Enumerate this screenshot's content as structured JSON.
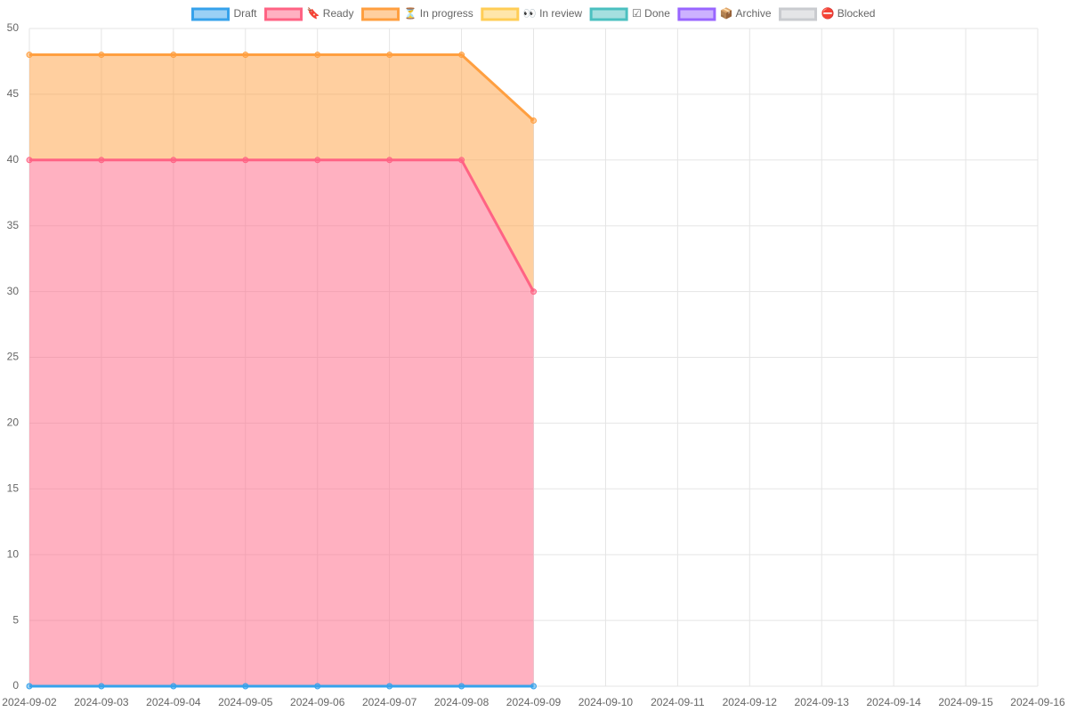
{
  "chart_data": {
    "type": "stacked-area",
    "categories": [
      "2024-09-02",
      "2024-09-03",
      "2024-09-04",
      "2024-09-05",
      "2024-09-06",
      "2024-09-07",
      "2024-09-08",
      "2024-09-09",
      "2024-09-10",
      "2024-09-11",
      "2024-09-12",
      "2024-09-13",
      "2024-09-14",
      "2024-09-15",
      "2024-09-16"
    ],
    "series": [
      {
        "name": "Draft",
        "color": "#36a2eb",
        "values": [
          0,
          0,
          0,
          0,
          0,
          0,
          0,
          0,
          null,
          null,
          null,
          null,
          null,
          null,
          null
        ]
      },
      {
        "name": "🔖 Ready",
        "color": "#ff6384",
        "values": [
          40,
          40,
          40,
          40,
          40,
          40,
          40,
          30,
          null,
          null,
          null,
          null,
          null,
          null,
          null
        ]
      },
      {
        "name": "⏳ In progress",
        "color": "#ff9f40",
        "values": [
          8,
          8,
          8,
          8,
          8,
          8,
          8,
          13,
          null,
          null,
          null,
          null,
          null,
          null,
          null
        ]
      },
      {
        "name": "👀 In review",
        "color": "#ffcd56",
        "values": [
          null,
          null,
          null,
          null,
          null,
          null,
          null,
          null,
          null,
          null,
          null,
          null,
          null,
          null,
          null
        ]
      },
      {
        "name": "☑ Done",
        "color": "#4bc0c0",
        "values": [
          null,
          null,
          null,
          null,
          null,
          null,
          null,
          null,
          null,
          null,
          null,
          null,
          null,
          null,
          null
        ]
      },
      {
        "name": "📦 Archive",
        "color": "#9966ff",
        "values": [
          null,
          null,
          null,
          null,
          null,
          null,
          null,
          null,
          null,
          null,
          null,
          null,
          null,
          null,
          null
        ]
      },
      {
        "name": "⛔ Blocked",
        "color": "#c9cbcf",
        "values": [
          null,
          null,
          null,
          null,
          null,
          null,
          null,
          null,
          null,
          null,
          null,
          null,
          null,
          null,
          null
        ]
      }
    ],
    "ylim": [
      0,
      50
    ],
    "yticks": [
      0,
      5,
      10,
      15,
      20,
      25,
      30,
      35,
      40,
      45,
      50
    ],
    "grid": true,
    "stacked": true,
    "legend": "top"
  }
}
